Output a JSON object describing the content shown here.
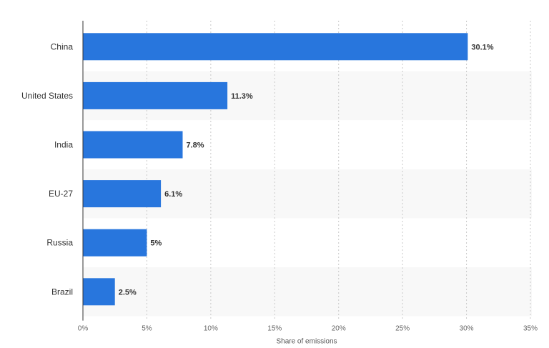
{
  "chart_data": {
    "type": "bar",
    "orientation": "horizontal",
    "categories": [
      "China",
      "United States",
      "India",
      "EU-27",
      "Russia",
      "Brazil"
    ],
    "values": [
      30.1,
      11.3,
      7.8,
      6.1,
      5,
      2.5
    ],
    "value_labels": [
      "30.1%",
      "11.3%",
      "7.8%",
      "6.1%",
      "5%",
      "2.5%"
    ],
    "xticks": [
      0,
      5,
      10,
      15,
      20,
      25,
      30,
      35
    ],
    "xtick_labels": [
      "0%",
      "5%",
      "10%",
      "15%",
      "20%",
      "25%",
      "30%",
      "35%"
    ],
    "xlim": [
      0,
      35
    ],
    "xlabel": "Share of emissions",
    "ylabel": "",
    "title": "",
    "grid": true,
    "colors": {
      "bar": "#2876dd",
      "band": "#f8f8f8"
    }
  }
}
